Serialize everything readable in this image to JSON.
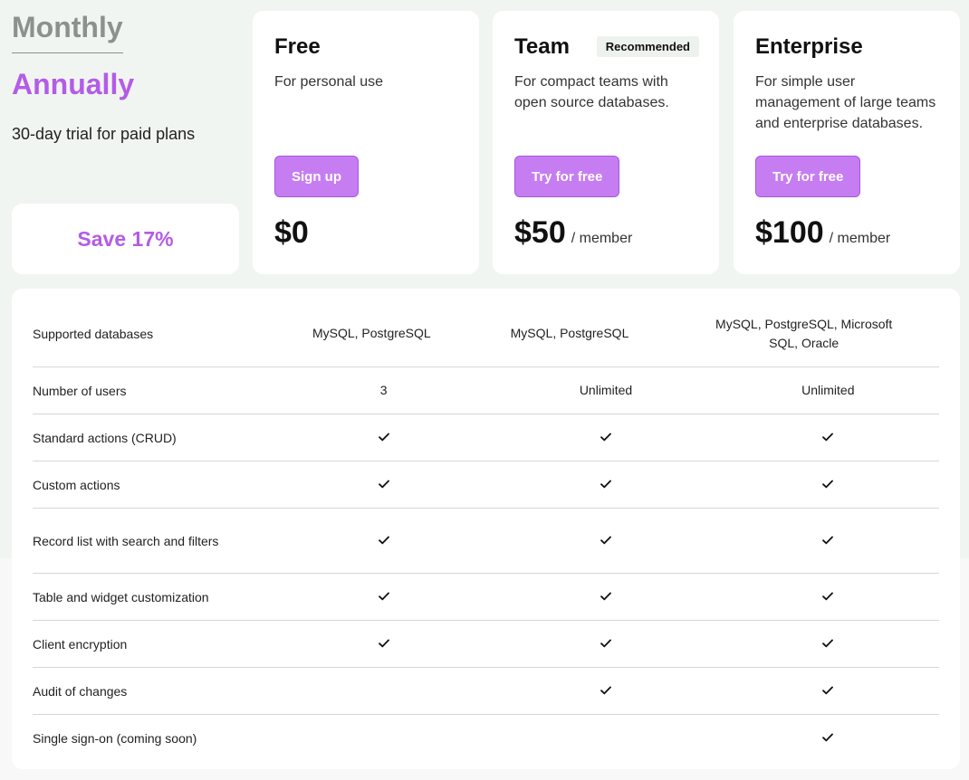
{
  "billing": {
    "monthly_label": "Monthly",
    "annually_label": "Annually",
    "trial_text": "30-day trial for paid plans",
    "save_text": "Save 17%"
  },
  "plans": [
    {
      "name": "Free",
      "description": "For personal use",
      "button": "Sign up",
      "price": "$0",
      "unit": "",
      "badge": ""
    },
    {
      "name": "Team",
      "description": "For compact teams with open source databases.",
      "button": "Try for free",
      "price": "$50",
      "unit": "/ member",
      "badge": "Recommended"
    },
    {
      "name": "Enterprise",
      "description": "For simple user management of large teams and enterprise databases.",
      "button": "Try for free",
      "price": "$100",
      "unit": "/ member",
      "badge": ""
    }
  ],
  "features": [
    {
      "label": "Supported databases",
      "values": [
        "MySQL, PostgreSQL",
        "MySQL, PostgreSQL",
        "MySQL, PostgreSQL, Microsoft SQL, Oracle"
      ]
    },
    {
      "label": "Number of users",
      "values": [
        "3",
        "Unlimited",
        "Unlimited"
      ]
    },
    {
      "label": "Standard actions (CRUD)",
      "values": [
        "check",
        "check",
        "check"
      ]
    },
    {
      "label": "Custom actions",
      "values": [
        "check",
        "check",
        "check"
      ]
    },
    {
      "label": "Record list with search and filters",
      "values": [
        "check",
        "check",
        "check"
      ]
    },
    {
      "label": "Table and widget customization",
      "values": [
        "check",
        "check",
        "check"
      ]
    },
    {
      "label": "Client encryption",
      "values": [
        "check",
        "check",
        "check"
      ]
    },
    {
      "label": "Audit of changes",
      "values": [
        "",
        "check",
        "check"
      ]
    },
    {
      "label": "Single sign-on (coming soon)",
      "values": [
        "",
        "",
        "check"
      ]
    }
  ],
  "colors": {
    "accent": "#b45ce6",
    "button": "#c77df2",
    "muted": "#8c918e"
  }
}
